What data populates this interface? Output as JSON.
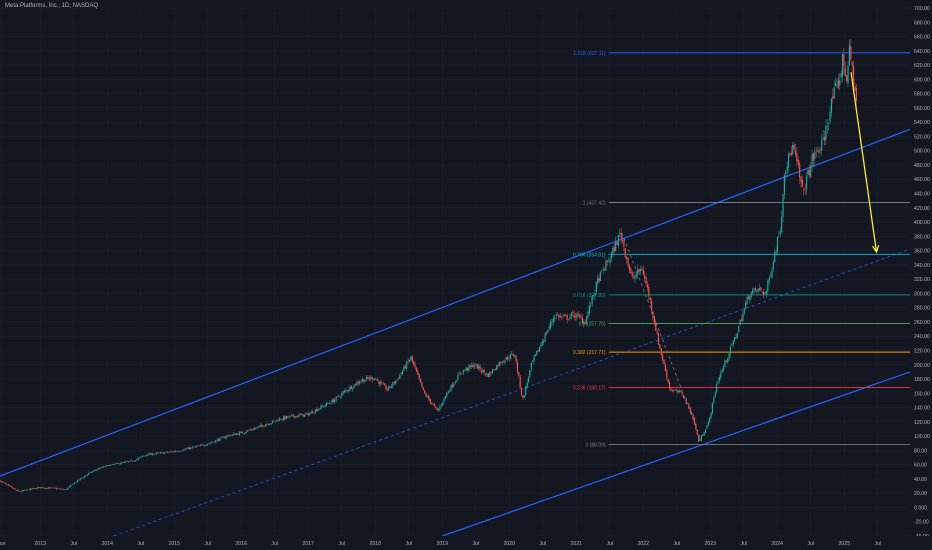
{
  "header": {
    "title": "Meta Platforms, Inc., 1D, NASDAQ"
  },
  "colors": {
    "background": "#131722",
    "grid": "#1f2330",
    "axis_text": "#b2b5be",
    "candle_up": "#26a69a",
    "candle_down": "#ef5350",
    "channel": "#2962ff",
    "arrow": "#ffeb3b"
  },
  "chart_data": {
    "type": "candlestick",
    "title": "Meta Platforms, Inc., 1D, NASDAQ",
    "ylim": [
      -40,
      700
    ],
    "yticks": [
      -40,
      -20,
      0,
      20,
      40,
      60,
      80,
      100,
      120,
      140,
      160,
      180,
      200,
      220,
      240,
      260,
      280,
      300,
      320,
      340,
      360,
      380,
      400,
      420,
      440,
      460,
      480,
      500,
      520,
      540,
      560,
      580,
      600,
      620,
      640,
      660,
      680,
      700
    ],
    "ytick_labels": [
      "-40.00",
      "-20.00",
      "0.000",
      "20.00",
      "40.00",
      "60.00",
      "80.00",
      "100.00",
      "120.00",
      "140.00",
      "160.00",
      "180.00",
      "200.00",
      "220.00",
      "240.00",
      "260.00",
      "280.00",
      "300.00",
      "320.00",
      "340.00",
      "360.00",
      "380.00",
      "400.00",
      "420.00",
      "440.00",
      "460.00",
      "480.00",
      "500.00",
      "520.00",
      "540.00",
      "560.00",
      "580.00",
      "600.00",
      "620.00",
      "640.00",
      "660.00",
      "680.00",
      "700.00"
    ],
    "xlim": [
      2012.4,
      2025.98
    ],
    "xticks": [
      {
        "t": 2012.42,
        "label": "Jun"
      },
      {
        "t": 2013.0,
        "label": "2013"
      },
      {
        "t": 2013.5,
        "label": "Jul"
      },
      {
        "t": 2014.0,
        "label": "2014"
      },
      {
        "t": 2014.5,
        "label": "Jul"
      },
      {
        "t": 2015.0,
        "label": "2015"
      },
      {
        "t": 2015.5,
        "label": "Jul"
      },
      {
        "t": 2016.0,
        "label": "2016"
      },
      {
        "t": 2016.5,
        "label": "Jul"
      },
      {
        "t": 2017.0,
        "label": "2017"
      },
      {
        "t": 2017.5,
        "label": "Jul"
      },
      {
        "t": 2018.0,
        "label": "2018"
      },
      {
        "t": 2018.5,
        "label": "Jul"
      },
      {
        "t": 2019.0,
        "label": "2019"
      },
      {
        "t": 2019.5,
        "label": "Jul"
      },
      {
        "t": 2020.0,
        "label": "2020"
      },
      {
        "t": 2020.5,
        "label": "Jul"
      },
      {
        "t": 2021.0,
        "label": "2021"
      },
      {
        "t": 2021.5,
        "label": "Jul"
      },
      {
        "t": 2022.0,
        "label": "2022"
      },
      {
        "t": 2022.5,
        "label": "Jul"
      },
      {
        "t": 2023.0,
        "label": "2023"
      },
      {
        "t": 2023.5,
        "label": "Jul"
      },
      {
        "t": 2024.0,
        "label": "2024"
      },
      {
        "t": 2024.5,
        "label": "Jul"
      },
      {
        "t": 2025.0,
        "label": "2025"
      },
      {
        "t": 2025.5,
        "label": "Jul"
      }
    ],
    "price_path": [
      [
        2012.4,
        38
      ],
      [
        2012.55,
        30
      ],
      [
        2012.7,
        22
      ],
      [
        2012.85,
        25
      ],
      [
        2013.0,
        28
      ],
      [
        2013.2,
        27
      ],
      [
        2013.4,
        25
      ],
      [
        2013.55,
        36
      ],
      [
        2013.75,
        48
      ],
      [
        2013.9,
        55
      ],
      [
        2014.0,
        58
      ],
      [
        2014.2,
        62
      ],
      [
        2014.4,
        65
      ],
      [
        2014.6,
        74
      ],
      [
        2014.8,
        76
      ],
      [
        2015.0,
        78
      ],
      [
        2015.2,
        82
      ],
      [
        2015.4,
        86
      ],
      [
        2015.6,
        92
      ],
      [
        2015.8,
        100
      ],
      [
        2016.0,
        104
      ],
      [
        2016.2,
        110
      ],
      [
        2016.4,
        117
      ],
      [
        2016.6,
        124
      ],
      [
        2016.8,
        128
      ],
      [
        2017.0,
        130
      ],
      [
        2017.2,
        140
      ],
      [
        2017.4,
        150
      ],
      [
        2017.6,
        165
      ],
      [
        2017.8,
        178
      ],
      [
        2018.0,
        182
      ],
      [
        2018.2,
        165
      ],
      [
        2018.35,
        180
      ],
      [
        2018.55,
        210
      ],
      [
        2018.75,
        160
      ],
      [
        2018.95,
        135
      ],
      [
        2019.1,
        162
      ],
      [
        2019.3,
        190
      ],
      [
        2019.5,
        200
      ],
      [
        2019.7,
        185
      ],
      [
        2019.9,
        205
      ],
      [
        2020.1,
        215
      ],
      [
        2020.22,
        150
      ],
      [
        2020.35,
        200
      ],
      [
        2020.55,
        240
      ],
      [
        2020.7,
        270
      ],
      [
        2020.85,
        265
      ],
      [
        2021.0,
        270
      ],
      [
        2021.15,
        260
      ],
      [
        2021.35,
        320
      ],
      [
        2021.55,
        355
      ],
      [
        2021.68,
        385
      ],
      [
        2021.85,
        320
      ],
      [
        2022.0,
        335
      ],
      [
        2022.1,
        300
      ],
      [
        2022.25,
        230
      ],
      [
        2022.42,
        165
      ],
      [
        2022.6,
        160
      ],
      [
        2022.75,
        130
      ],
      [
        2022.85,
        92
      ],
      [
        2023.0,
        120
      ],
      [
        2023.12,
        175
      ],
      [
        2023.25,
        205
      ],
      [
        2023.4,
        240
      ],
      [
        2023.6,
        300
      ],
      [
        2023.75,
        305
      ],
      [
        2023.85,
        300
      ],
      [
        2023.98,
        355
      ],
      [
        2024.08,
        400
      ],
      [
        2024.12,
        470
      ],
      [
        2024.25,
        505
      ],
      [
        2024.32,
        480
      ],
      [
        2024.4,
        440
      ],
      [
        2024.55,
        490
      ],
      [
        2024.7,
        510
      ],
      [
        2024.85,
        575
      ],
      [
        2024.95,
        600
      ],
      [
        2025.0,
        630
      ],
      [
        2025.05,
        600
      ],
      [
        2025.1,
        640
      ],
      [
        2025.2,
        570
      ]
    ],
    "candles_note": "",
    "fib_levels": [
      {
        "ratio": "0",
        "label": "0 (88.09)",
        "price": 88.09,
        "color": "#787b86"
      },
      {
        "ratio": "0.236",
        "label": "0.236 (168.17)",
        "price": 168.17,
        "color": "#f23645"
      },
      {
        "ratio": "0.382",
        "label": "0.382 (217.71)",
        "price": 217.71,
        "color": "#ff9800"
      },
      {
        "ratio": "0.5",
        "label": "0.5 (257.76)",
        "price": 257.76,
        "color": "#4caf50"
      },
      {
        "ratio": "0.618",
        "label": "0.618 (297.80)",
        "price": 297.8,
        "color": "#089981"
      },
      {
        "ratio": "0.786",
        "label": "0.786 (354.81)",
        "price": 354.81,
        "color": "#00bcd4"
      },
      {
        "ratio": "1",
        "label": "1 (427.42)",
        "price": 427.42,
        "color": "#787b86"
      },
      {
        "ratio": "1.618",
        "label": "1.618 (637.11)",
        "price": 637.11,
        "color": "#2962ff"
      }
    ],
    "fib_start_t": 2022.75,
    "fib_end_t": 2025.98,
    "channel": {
      "upper": [
        [
          2012.4,
          44
        ],
        [
          2025.98,
          530
        ]
      ],
      "middle": [
        [
          2014.1,
          -40
        ],
        [
          2025.98,
          362
        ]
      ],
      "lower": [
        [
          2019.0,
          -40
        ],
        [
          2025.98,
          190
        ]
      ]
    },
    "fib_trend": [
      [
        2021.68,
        385
      ],
      [
        2022.87,
        92
      ]
    ],
    "projection_arrow": [
      [
        2025.1,
        610
      ],
      [
        2025.48,
        358
      ]
    ]
  }
}
